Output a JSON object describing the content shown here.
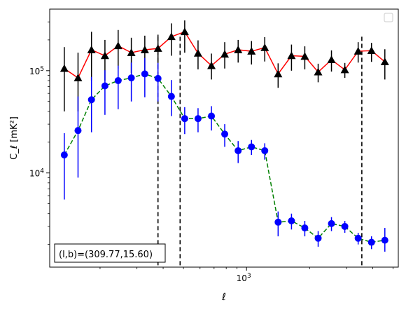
{
  "chart_data": {
    "type": "scatter",
    "title": "",
    "xlabel": "ℓ",
    "ylabel": "C_ℓ [mK²]",
    "xscale": "log",
    "yscale": "log",
    "xlim": [
      115,
      5300
    ],
    "ylim": [
      1200,
      400000
    ],
    "x_ticks": [
      {
        "value": 1000,
        "label": "10^3"
      }
    ],
    "y_ticks": [
      {
        "value": 10000,
        "label": "10^4"
      },
      {
        "value": 100000,
        "label": "10^5"
      }
    ],
    "annotation": "(l,b)=(309.77,15.60)",
    "legend": {
      "placement": "top-right",
      "entries": []
    },
    "vlines": [
      378,
      482,
      3550
    ],
    "x": [
      135,
      157,
      182,
      211,
      244,
      282,
      327,
      378,
      438,
      507,
      587,
      680,
      787,
      912,
      1056,
      1222,
      1415,
      1639,
      1897,
      2197,
      2543,
      2945,
      3410,
      3948,
      4572
    ],
    "series": [
      {
        "color": "#ff0000",
        "marker": "triangle",
        "linestyle": "solid",
        "errorbar_color": "#000000",
        "y": [
          105000,
          85000,
          160000,
          140000,
          175000,
          150000,
          160000,
          165000,
          215000,
          240000,
          148000,
          112000,
          145000,
          160000,
          155000,
          168000,
          93000,
          140000,
          138000,
          97000,
          128000,
          102000,
          155000,
          157000,
          122000
        ],
        "err_low": [
          65000,
          45000,
          80000,
          60000,
          70000,
          55000,
          60000,
          60000,
          75000,
          90000,
          45000,
          30000,
          40000,
          40000,
          40000,
          45000,
          25000,
          40000,
          35000,
          20000,
          30000,
          17000,
          35000,
          35000,
          40000
        ],
        "err_high": [
          65000,
          65000,
          80000,
          60000,
          75000,
          60000,
          60000,
          60000,
          75000,
          70000,
          50000,
          35000,
          45000,
          40000,
          40000,
          45000,
          25000,
          40000,
          35000,
          20000,
          30000,
          17000,
          35000,
          30000,
          40000
        ]
      },
      {
        "color": "#0000ff",
        "line_color": "#008000",
        "marker": "circle",
        "linestyle": "dashed",
        "errorbar_color": "#0000ff",
        "y": [
          15000,
          26000,
          52000,
          71000,
          80000,
          85000,
          93000,
          84000,
          56000,
          34000,
          34000,
          36000,
          24000,
          16500,
          18000,
          16500,
          3300,
          3400,
          2900,
          2300,
          3200,
          3000,
          2300,
          2100,
          2200
        ],
        "err_low": [
          9500,
          17000,
          27000,
          34000,
          38000,
          35000,
          38000,
          34000,
          20000,
          10000,
          9000,
          10000,
          6000,
          4000,
          3000,
          3000,
          900,
          600,
          500,
          400,
          500,
          400,
          300,
          300,
          500
        ],
        "err_high": [
          9500,
          30000,
          35000,
          30000,
          32000,
          35000,
          40000,
          35000,
          25000,
          10000,
          9000,
          9000,
          6000,
          4000,
          3000,
          3000,
          900,
          600,
          500,
          400,
          500,
          400,
          300,
          300,
          700
        ]
      }
    ]
  }
}
